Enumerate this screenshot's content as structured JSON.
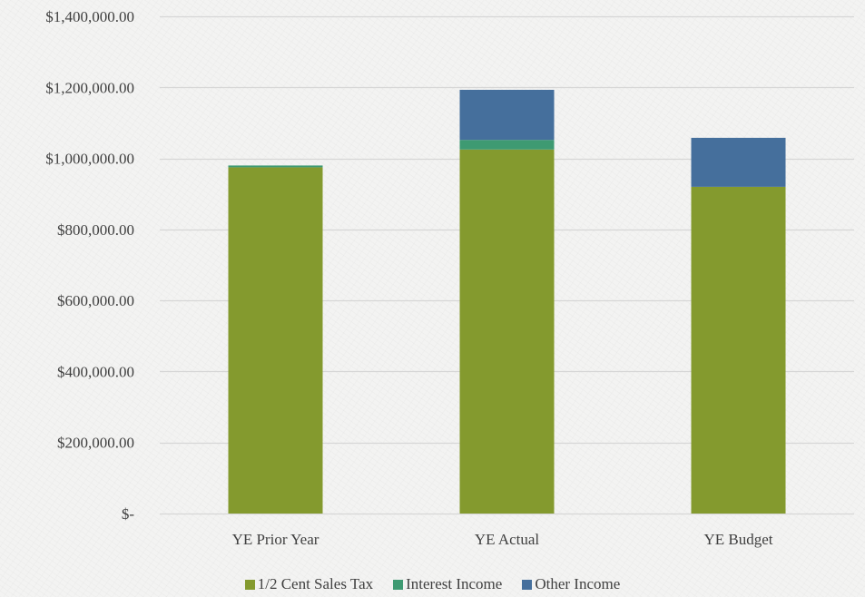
{
  "chart_data": {
    "type": "bar",
    "stacked": true,
    "categories": [
      "YE Prior Year",
      "YE Actual",
      "YE Budget"
    ],
    "series": [
      {
        "name": "1/2 Cent Sales Tax",
        "color": "#849a2e",
        "values": [
          975000,
          1025000,
          920000
        ]
      },
      {
        "name": "Interest Income",
        "color": "#3e9a72",
        "values": [
          5000,
          27000,
          0
        ]
      },
      {
        "name": "Other Income",
        "color": "#456f9c",
        "values": [
          0,
          141000,
          138000
        ]
      }
    ],
    "y_ticks": [
      {
        "value": 0,
        "label": "$-"
      },
      {
        "value": 200000,
        "label": "$200,000.00"
      },
      {
        "value": 400000,
        "label": "$400,000.00"
      },
      {
        "value": 600000,
        "label": "$600,000.00"
      },
      {
        "value": 800000,
        "label": "$800,000.00"
      },
      {
        "value": 1000000,
        "label": "$1,000,000.00"
      },
      {
        "value": 1200000,
        "label": "$1,200,000.00"
      },
      {
        "value": 1400000,
        "label": "$1,400,000.00"
      }
    ],
    "ylim": [
      0,
      1400000
    ],
    "grid": true,
    "legend_position": "bottom",
    "title": "",
    "xlabel": "",
    "ylabel": ""
  }
}
